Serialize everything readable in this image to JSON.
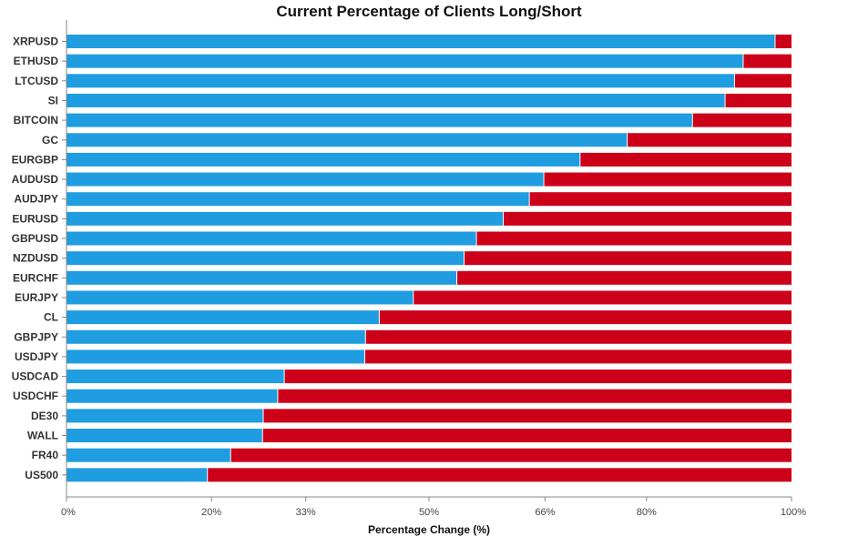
{
  "chart_data": {
    "type": "bar",
    "orientation": "horizontal",
    "stacked": true,
    "title": "Current Percentage of Clients Long/Short",
    "xlabel": "Percentage Change (%)",
    "ylabel": "",
    "xlim": [
      0,
      100
    ],
    "x_ticks": [
      {
        "value": 0,
        "label": "0%"
      },
      {
        "value": 20,
        "label": "20%"
      },
      {
        "value": 33,
        "label": "33%"
      },
      {
        "value": 50,
        "label": "50%"
      },
      {
        "value": 66,
        "label": "66%"
      },
      {
        "value": 80,
        "label": "80%"
      },
      {
        "value": 100,
        "label": "100%"
      }
    ],
    "categories": [
      "XRPUSD",
      "ETHUSD",
      "LTCUSD",
      "SI",
      "BITCOIN",
      "GC",
      "EURGBP",
      "AUDUSD",
      "AUDJPY",
      "EURUSD",
      "GBPUSD",
      "NZDUSD",
      "EURCHF",
      "EURJPY",
      "CL",
      "GBPJPY",
      "USDJPY",
      "USDCAD",
      "USDCHF",
      "DE30",
      "WALL",
      "FR40",
      "US500"
    ],
    "series": [
      {
        "values": [
          97.8,
          93.4,
          92.2,
          90.9,
          86.4,
          77.4,
          70.9,
          65.9,
          63.9,
          60.3,
          56.6,
          54.9,
          53.9,
          47.9,
          43.2,
          41.3,
          41.2,
          30.1,
          29.2,
          27.2,
          27.1,
          22.7,
          19.5
        ],
        "color": "#1f9de0"
      },
      {
        "values": [
          2.2,
          6.6,
          7.8,
          9.1,
          13.6,
          22.6,
          29.1,
          34.1,
          36.1,
          39.7,
          43.4,
          45.1,
          46.1,
          52.1,
          56.8,
          58.7,
          58.8,
          69.9,
          70.8,
          72.8,
          72.9,
          77.3,
          80.5
        ],
        "color": "#cc0019"
      }
    ],
    "grid": false,
    "legend": "none"
  }
}
